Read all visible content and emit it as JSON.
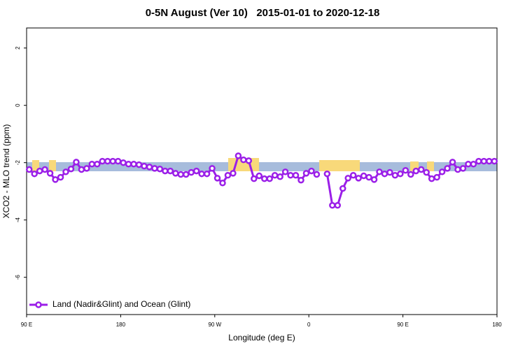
{
  "chart_data": {
    "type": "line",
    "title": "0-5N August (Ver 10)   2015-01-01 to 2020-12-18",
    "x_label": "Longitude (deg E)",
    "y_label": "XCO2 - MLO trend (ppm)",
    "x": [
      92.5,
      97.5,
      102.5,
      107.5,
      112.5,
      117.5,
      122.5,
      127.5,
      132.5,
      137.5,
      142.5,
      147.5,
      152.5,
      157.5,
      162.5,
      167.5,
      172.5,
      177.5,
      182.5,
      187.5,
      192.5,
      197.5,
      202.5,
      207.5,
      212.5,
      217.5,
      222.5,
      227.5,
      232.5,
      237.5,
      242.5,
      247.5,
      252.5,
      257.5,
      262.5,
      267.5,
      272.5,
      277.5,
      282.5,
      287.5,
      292.5,
      297.5,
      302.5,
      307.5,
      312.5,
      317.5,
      322.5,
      327.5,
      332.5,
      337.5,
      342.5,
      347.5,
      352.5,
      357.5,
      362.5,
      367.5,
      372.5,
      377.5,
      382.5,
      387.5,
      392.5,
      397.5,
      402.5,
      407.5,
      412.5,
      417.5,
      422.5,
      427.5,
      432.5,
      437.5,
      442.5,
      447.5,
      452.5,
      457.5,
      462.5,
      467.5,
      472.5,
      477.5,
      482.5,
      487.5,
      492.5,
      497.5,
      502.5,
      507.5,
      512.5,
      517.5,
      522.5,
      527.5,
      532.5,
      537.5
    ],
    "series": [
      {
        "name": "Land (Nadir&Glint) and Ocean (Glint)",
        "color": "#9b1fe8",
        "values": [
          -2.24,
          -2.39,
          -2.29,
          -2.24,
          -2.37,
          -2.59,
          -2.51,
          -2.32,
          -2.22,
          -1.98,
          -2.24,
          -2.2,
          -2.05,
          -2.05,
          -1.95,
          -1.95,
          -1.95,
          -1.95,
          -2.0,
          -2.05,
          -2.05,
          -2.07,
          -2.12,
          -2.15,
          -2.2,
          -2.22,
          -2.29,
          -2.29,
          -2.37,
          -2.41,
          -2.41,
          -2.34,
          -2.29,
          -2.39,
          -2.39,
          -2.2,
          -2.54,
          -2.71,
          -2.44,
          -2.37,
          -1.76,
          -1.9,
          -1.93,
          -2.56,
          -2.46,
          -2.56,
          -2.56,
          -2.44,
          -2.49,
          -2.32,
          -2.44,
          -2.44,
          -2.61,
          -2.37,
          -2.29,
          -2.41,
          null,
          -2.39,
          -3.49,
          -3.49,
          -2.9,
          -2.54,
          -2.44,
          -2.54,
          -2.46,
          -2.51,
          -2.59,
          -2.32,
          -2.39,
          -2.34,
          -2.44,
          -2.39,
          -2.27,
          -2.41,
          -2.29,
          -2.24,
          -2.34,
          -2.56,
          -2.51,
          -2.32,
          -2.2,
          -1.98,
          -2.24,
          -2.2,
          -2.05,
          -2.05,
          -1.95,
          -1.95,
          -1.95,
          -1.95
        ]
      }
    ],
    "xlim": [
      90,
      540
    ],
    "xticks": [
      {
        "value": 90,
        "label": "90 E"
      },
      180,
      {
        "value": 270,
        "label": "90 W"
      },
      {
        "value": 360,
        "label": "0"
      },
      {
        "value": 450,
        "label": "90 E"
      },
      {
        "value": 540,
        "label": "180"
      }
    ],
    "ylim": [
      -7.3,
      2.7
    ],
    "yticks": [
      -6,
      -4,
      -2,
      0,
      2
    ],
    "legend": "bottom-left"
  }
}
